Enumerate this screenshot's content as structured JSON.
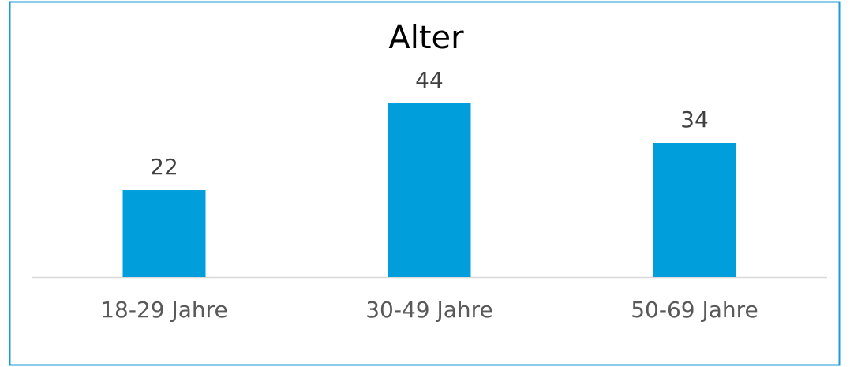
{
  "chart_data": {
    "type": "bar",
    "title": "Alter",
    "categories": [
      "18-29 Jahre",
      "30-49 Jahre",
      "50-69 Jahre"
    ],
    "values": [
      22,
      44,
      34
    ],
    "color": "#009fdb"
  }
}
